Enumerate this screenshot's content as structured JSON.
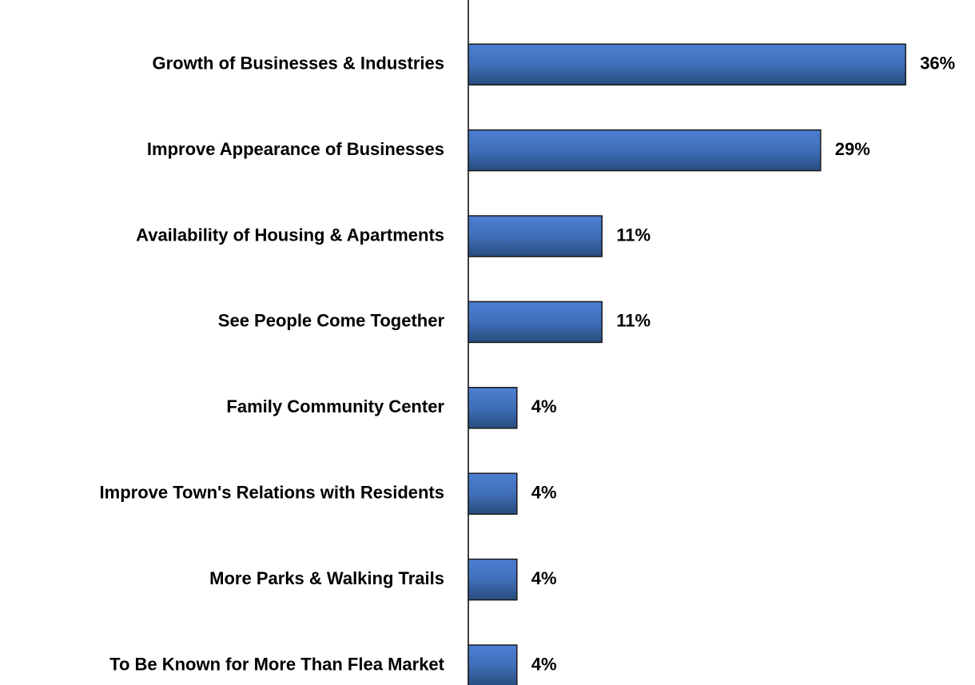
{
  "chart_data": {
    "type": "hbar",
    "categories": [
      "Growth of Businesses & Industries",
      "Improve Appearance of Businesses",
      "Availability of Housing & Apartments",
      "See People Come Together",
      "Family Community Center",
      "Improve Town's Relations with Residents",
      "More Parks & Walking Trails",
      "To Be Known for More Than Flea Market"
    ],
    "values": [
      36,
      29,
      11,
      11,
      4,
      4,
      4,
      4
    ],
    "value_labels": [
      "36%",
      "29%",
      "11%",
      "11%",
      "4%",
      "4%",
      "4%",
      "4%"
    ],
    "color": "#3f6fb8",
    "xlim": [
      0,
      40
    ]
  }
}
